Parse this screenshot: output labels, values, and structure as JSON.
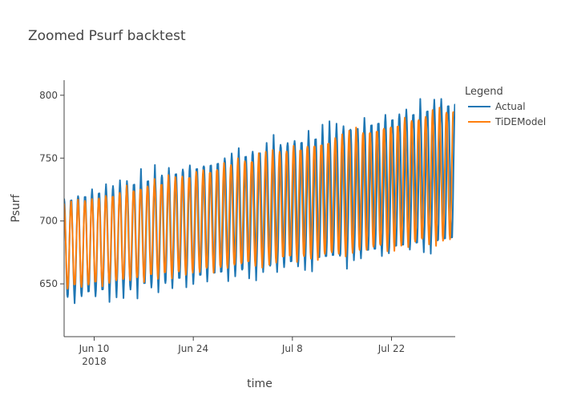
{
  "chart_data": {
    "type": "line",
    "title": "Zoomed Psurf backtest",
    "xlabel": "time",
    "ylabel": "Psurf",
    "x_start": "2018-06-05T18:00",
    "x_end": "2018-07-31T00:00",
    "ylim": [
      608,
      812
    ],
    "yticks": [
      650,
      700,
      750,
      800
    ],
    "xticks": [
      {
        "date": "2018-06-10",
        "label": "Jun 10",
        "sublabel": "2018"
      },
      {
        "date": "2018-06-24",
        "label": "Jun 24",
        "sublabel": ""
      },
      {
        "date": "2018-07-08",
        "label": "Jul 8",
        "sublabel": ""
      },
      {
        "date": "2018-07-22",
        "label": "Jul 22",
        "sublabel": ""
      }
    ],
    "grid": false,
    "legend": {
      "title": "Legend",
      "position": "top-right"
    },
    "series": [
      {
        "name": "Actual",
        "color": "#1f77b4",
        "start": "2018-06-05T18:00",
        "end": "2018-07-31T00:00",
        "cycles": 56,
        "high_start": 718,
        "high_end": 797,
        "low_start": 638,
        "low_end": 683,
        "noise": 9
      },
      {
        "name": "TiDEModel",
        "color": "#ff7f0e",
        "start": "2018-06-05T18:00",
        "end": "2018-07-30T18:00",
        "cycles": 56,
        "high_start": 712,
        "high_end": 790,
        "low_start": 646,
        "low_end": 686,
        "noise": 4
      }
    ]
  }
}
